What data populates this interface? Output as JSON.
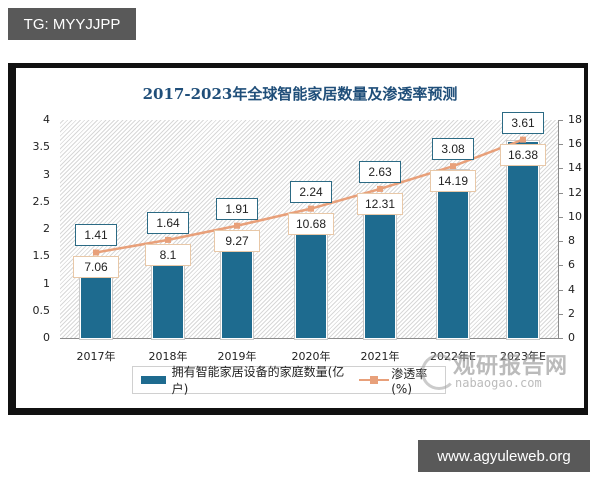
{
  "overlay": {
    "top_tag": "TG: MYYJJPP",
    "bottom_tag": "www.agyuleweb.org"
  },
  "colors": {
    "bar": "#1e6b8f",
    "line": "#e8a07a",
    "title": "#1f4e79",
    "frame": "#111111"
  },
  "chart_data": {
    "type": "bar",
    "title": "2017-2023年全球智能家居数量及渗透率预测",
    "categories": [
      "2017年",
      "2018年",
      "2019年",
      "2020年",
      "2021年",
      "2022年E",
      "2023年E"
    ],
    "series": [
      {
        "name": "拥有智能家居设备的家庭数量(亿户)",
        "type": "bar",
        "axis": "left",
        "values": [
          1.41,
          1.64,
          1.91,
          2.24,
          2.63,
          3.08,
          3.61
        ],
        "labels": [
          "1.41",
          "1.64",
          "1.91",
          "2.24",
          "2.63",
          "3.08",
          "3.61"
        ]
      },
      {
        "name": "渗透率(%)",
        "type": "line",
        "axis": "right",
        "values": [
          7.06,
          8.1,
          9.27,
          10.68,
          12.31,
          14.19,
          16.38
        ],
        "labels": [
          "7.06",
          "8.1",
          "9.27",
          "10.68",
          "12.31",
          "14.19",
          "16.38"
        ]
      }
    ],
    "left_axis": {
      "ticks": [
        "0",
        "0.5",
        "1",
        "1.5",
        "2",
        "2.5",
        "3",
        "3.5",
        "4"
      ],
      "ylim": [
        0,
        4
      ]
    },
    "right_axis": {
      "ticks": [
        "0",
        "2",
        "4",
        "6",
        "8",
        "10",
        "12",
        "14",
        "16",
        "18"
      ],
      "ylim": [
        0,
        18
      ]
    },
    "xlabel": "",
    "ylabel": "",
    "legend_position": "bottom",
    "grid": false
  },
  "watermark": {
    "cn": "观研报告网",
    "en": "nabaogao.com"
  }
}
